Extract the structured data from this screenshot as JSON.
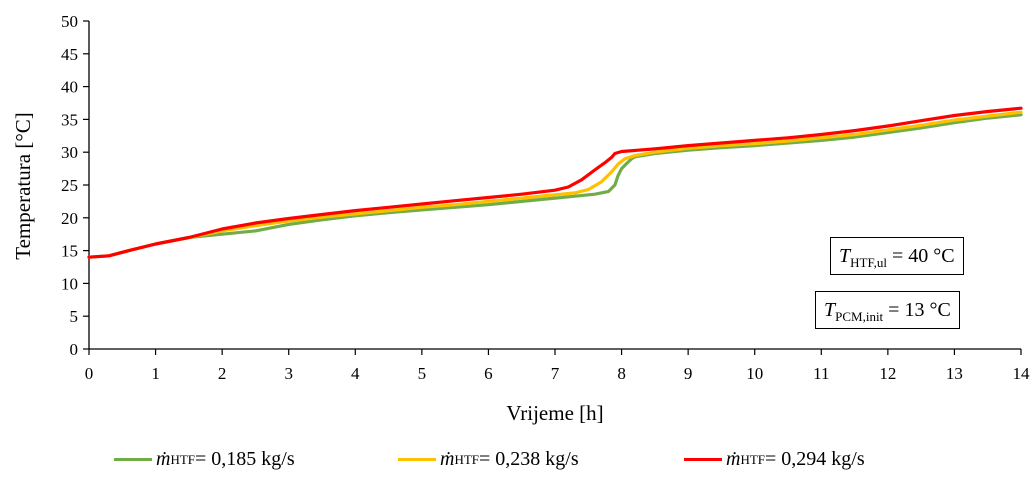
{
  "chart_data": {
    "type": "line",
    "title": "",
    "xlabel": "Vrijeme [h]",
    "ylabel": "Temperatura [°C]",
    "xlim": [
      0,
      14
    ],
    "ylim": [
      0,
      50
    ],
    "xticks": [
      0,
      1,
      2,
      3,
      4,
      5,
      6,
      7,
      8,
      9,
      10,
      11,
      12,
      13,
      14
    ],
    "yticks": [
      0,
      5,
      10,
      15,
      20,
      25,
      30,
      35,
      40,
      45,
      50
    ],
    "grid": false,
    "legend_position": "bottom",
    "series": [
      {
        "name": "ṁHTF = 0,185 kg/s",
        "color": "#70ad47",
        "x": [
          0,
          0.3,
          0.6,
          1.0,
          1.5,
          2.0,
          2.5,
          3.0,
          3.5,
          4.0,
          4.5,
          5.0,
          5.5,
          6.0,
          6.5,
          7.0,
          7.3,
          7.6,
          7.8,
          7.9,
          7.95,
          8.0,
          8.05,
          8.1,
          8.15,
          8.2,
          8.5,
          9.0,
          9.5,
          10.0,
          10.5,
          11.0,
          11.5,
          12.0,
          12.5,
          13.0,
          13.5,
          14.0
        ],
        "y": [
          14.0,
          14.2,
          15.0,
          16.0,
          17.0,
          17.5,
          18.0,
          19.0,
          19.7,
          20.3,
          20.8,
          21.2,
          21.6,
          22.0,
          22.5,
          23.0,
          23.3,
          23.6,
          24.0,
          25.0,
          26.5,
          27.5,
          28.0,
          28.5,
          29.0,
          29.3,
          29.8,
          30.3,
          30.7,
          31.0,
          31.4,
          31.8,
          32.3,
          33.0,
          33.7,
          34.5,
          35.2,
          35.7
        ]
      },
      {
        "name": "ṁHTF = 0,238 kg/s",
        "color": "#ffc000",
        "x": [
          0,
          0.3,
          0.6,
          1.0,
          1.5,
          2.0,
          2.5,
          3.0,
          3.5,
          4.0,
          4.5,
          5.0,
          5.5,
          6.0,
          6.5,
          7.0,
          7.3,
          7.5,
          7.7,
          7.85,
          7.95,
          8.05,
          8.2,
          8.5,
          9.0,
          9.5,
          10.0,
          10.5,
          11.0,
          11.5,
          12.0,
          12.5,
          13.0,
          13.5,
          14.0
        ],
        "y": [
          14.0,
          14.2,
          15.0,
          16.0,
          17.0,
          18.0,
          18.8,
          19.5,
          20.1,
          20.6,
          21.1,
          21.6,
          22.0,
          22.5,
          23.0,
          23.5,
          23.8,
          24.3,
          25.5,
          27.0,
          28.2,
          29.0,
          29.5,
          30.0,
          30.6,
          31.0,
          31.3,
          31.7,
          32.2,
          32.7,
          33.4,
          34.1,
          34.9,
          35.5,
          36.1
        ]
      },
      {
        "name": "ṁHTF = 0,294 kg/s",
        "color": "#ff0000",
        "x": [
          0,
          0.3,
          0.6,
          1.0,
          1.5,
          2.0,
          2.5,
          3.0,
          3.5,
          4.0,
          4.5,
          5.0,
          5.5,
          6.0,
          6.5,
          7.0,
          7.2,
          7.4,
          7.6,
          7.75,
          7.85,
          7.9,
          8.0,
          8.5,
          9.0,
          9.5,
          10.0,
          10.5,
          11.0,
          11.5,
          12.0,
          12.5,
          13.0,
          13.5,
          14.0
        ],
        "y": [
          14.0,
          14.2,
          15.0,
          16.0,
          17.0,
          18.3,
          19.2,
          19.9,
          20.5,
          21.1,
          21.6,
          22.1,
          22.6,
          23.1,
          23.6,
          24.2,
          24.7,
          25.8,
          27.3,
          28.4,
          29.2,
          29.8,
          30.1,
          30.5,
          31.0,
          31.4,
          31.8,
          32.2,
          32.7,
          33.3,
          34.0,
          34.8,
          35.6,
          36.2,
          36.7
        ]
      }
    ],
    "annotations": [
      {
        "symbol": "T",
        "subscript": "HTF,ul",
        "text": " = 40 °C"
      },
      {
        "symbol": "T",
        "subscript": "PCM,init",
        "text": " = 13 °C"
      }
    ],
    "legend": [
      {
        "symbol": "ṁ",
        "subscript": "HTF",
        "text": " = 0,185 kg/s",
        "color": "#70ad47"
      },
      {
        "symbol": "ṁ",
        "subscript": "HTF",
        "text": " = 0,238 kg/s",
        "color": "#ffc000"
      },
      {
        "symbol": "ṁ",
        "subscript": "HTF",
        "text": " = 0,294 kg/s",
        "color": "#ff0000"
      }
    ]
  }
}
